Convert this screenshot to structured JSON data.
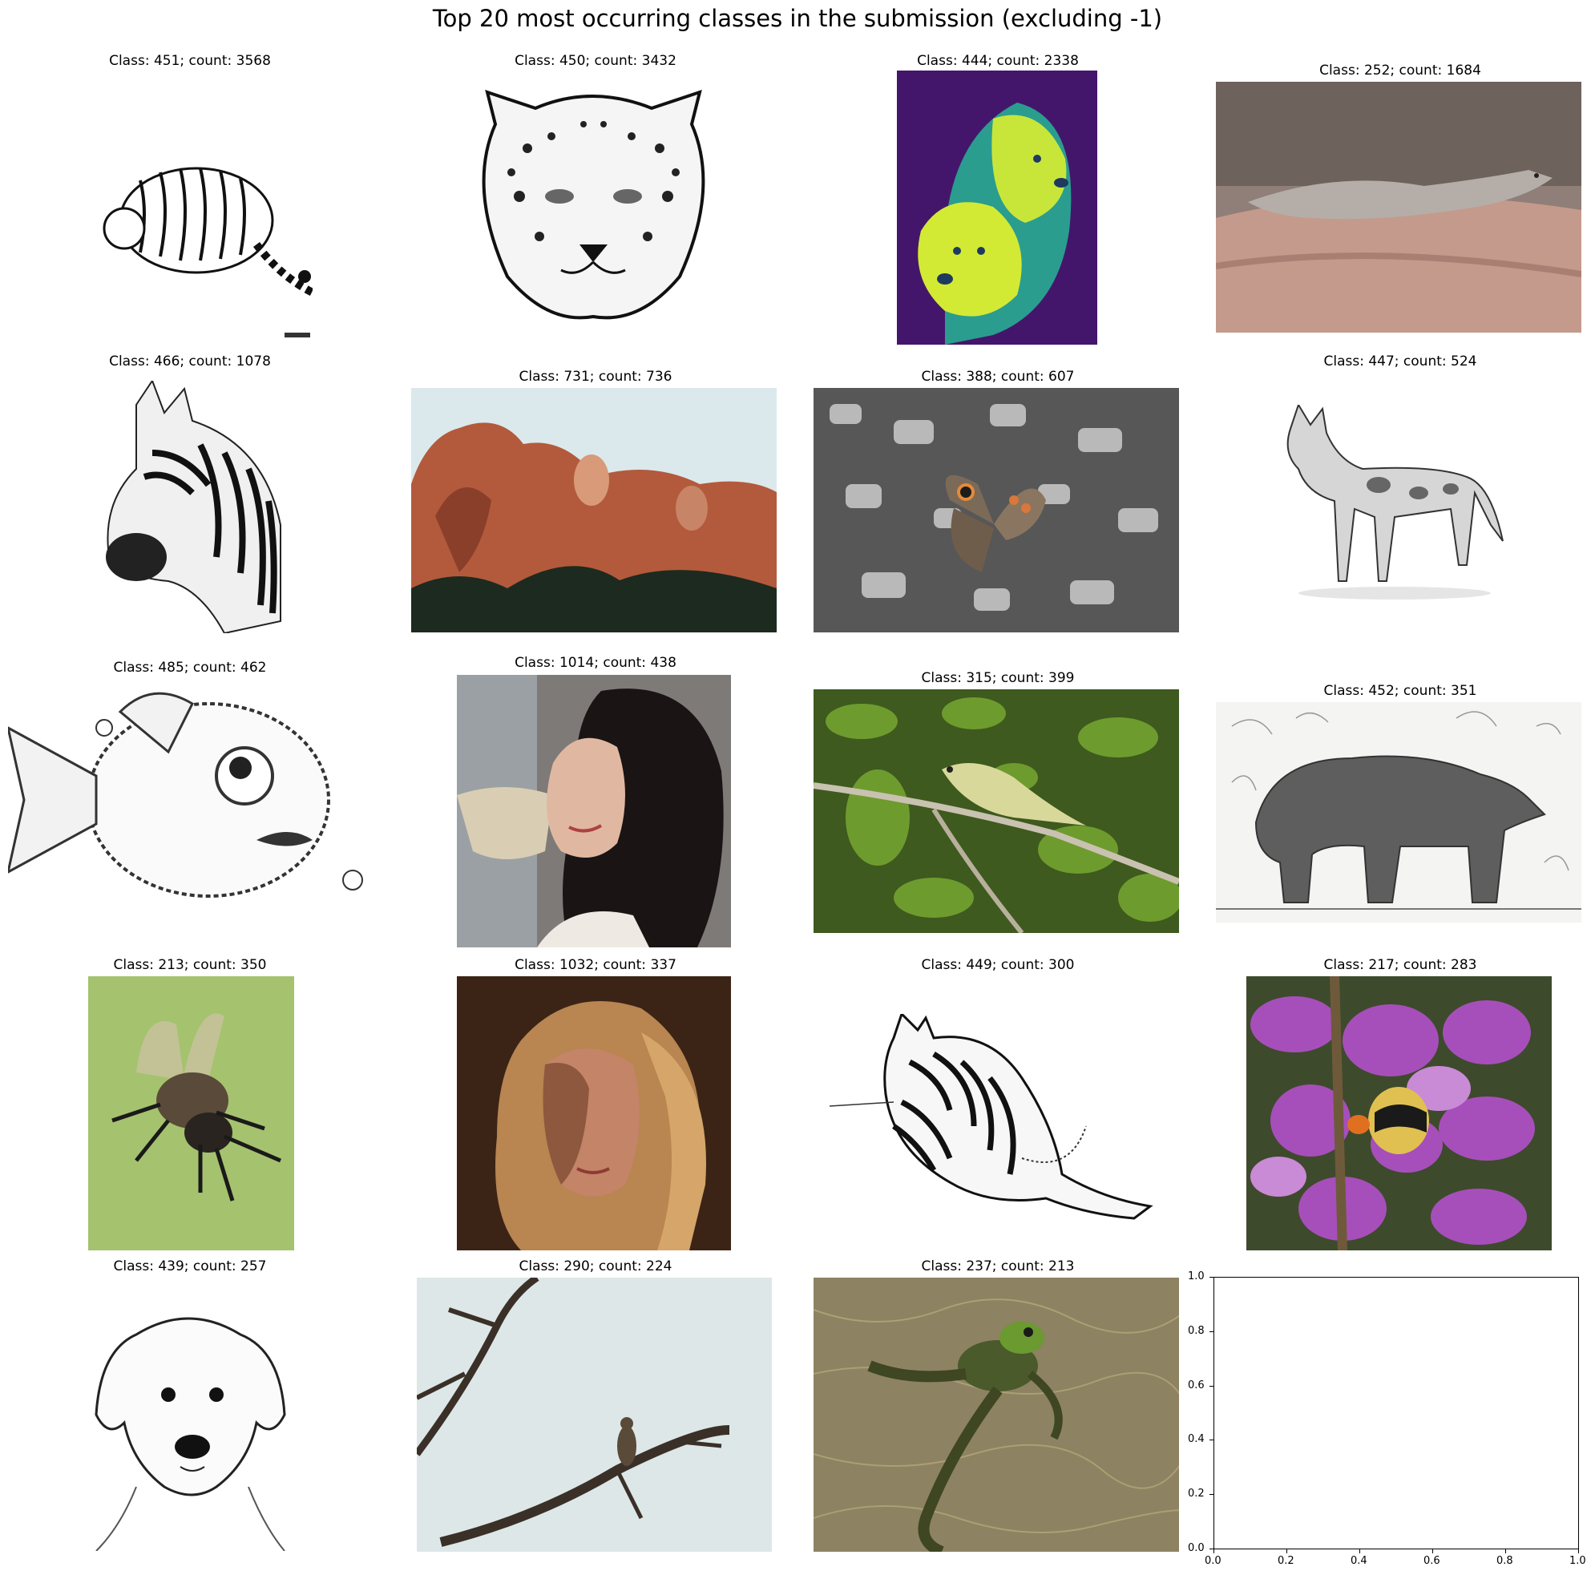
{
  "figure": {
    "title": "Top 20 most occurring classes in the submission (excluding -1)"
  },
  "panels": [
    {
      "label": "Class: 451; count: 3568",
      "class_id": 451,
      "count": 3568,
      "subject": "tiger sketch"
    },
    {
      "label": "Class: 450; count: 3432",
      "class_id": 450,
      "count": 3432,
      "subject": "leopard head drawing"
    },
    {
      "label": "Class: 444; count: 2338",
      "class_id": 444,
      "count": 2338,
      "subject": "two dogs viridis colormap"
    },
    {
      "label": "Class: 252; count: 1684",
      "class_id": 252,
      "count": 1684,
      "subject": "gecko on log"
    },
    {
      "label": "Class: 466; count: 1078",
      "class_id": 466,
      "count": 1078,
      "subject": "zebra head drawing"
    },
    {
      "label": "Class: 731; count: 736",
      "class_id": 731,
      "count": 736,
      "subject": "mount rushmore"
    },
    {
      "label": "Class: 388; count: 607",
      "class_id": 388,
      "count": 607,
      "subject": "butterfly on gravel"
    },
    {
      "label": "Class: 447; count: 524",
      "class_id": 447,
      "count": 524,
      "subject": "wild dog sketch"
    },
    {
      "label": "Class: 485; count: 462",
      "class_id": 485,
      "count": 462,
      "subject": "pufferfish drawing"
    },
    {
      "label": "Class: 1014; count: 438",
      "class_id": 1014,
      "count": 438,
      "subject": "smiling woman"
    },
    {
      "label": "Class: 315; count: 399",
      "class_id": 315,
      "count": 399,
      "subject": "bird on branch"
    },
    {
      "label": "Class: 452; count: 351",
      "class_id": 452,
      "count": 351,
      "subject": "bear sketch"
    },
    {
      "label": "Class: 213; count: 350",
      "class_id": 213,
      "count": 350,
      "subject": "bee on green"
    },
    {
      "label": "Class: 1032; count: 337",
      "class_id": 1032,
      "count": 337,
      "subject": "blonde woman"
    },
    {
      "label": "Class: 449; count: 300",
      "class_id": 449,
      "count": 300,
      "subject": "striped cat drawing"
    },
    {
      "label": "Class: 217; count: 283",
      "class_id": 217,
      "count": 283,
      "subject": "bumblebee on flower"
    },
    {
      "label": "Class: 439; count: 257",
      "class_id": 439,
      "count": 257,
      "subject": "dog portrait sketch"
    },
    {
      "label": "Class: 290; count: 224",
      "class_id": 290,
      "count": 224,
      "subject": "bird on bare branch"
    },
    {
      "label": "Class: 237; count: 213",
      "class_id": 237,
      "count": 213,
      "subject": "frog in water"
    }
  ],
  "empty_axes": {
    "x_ticks": [
      "0.0",
      "0.2",
      "0.4",
      "0.6",
      "0.8",
      "1.0"
    ],
    "y_ticks": [
      "0.0",
      "0.2",
      "0.4",
      "0.6",
      "0.8",
      "1.0"
    ],
    "xlim": [
      0,
      1
    ],
    "ylim": [
      0,
      1
    ]
  }
}
